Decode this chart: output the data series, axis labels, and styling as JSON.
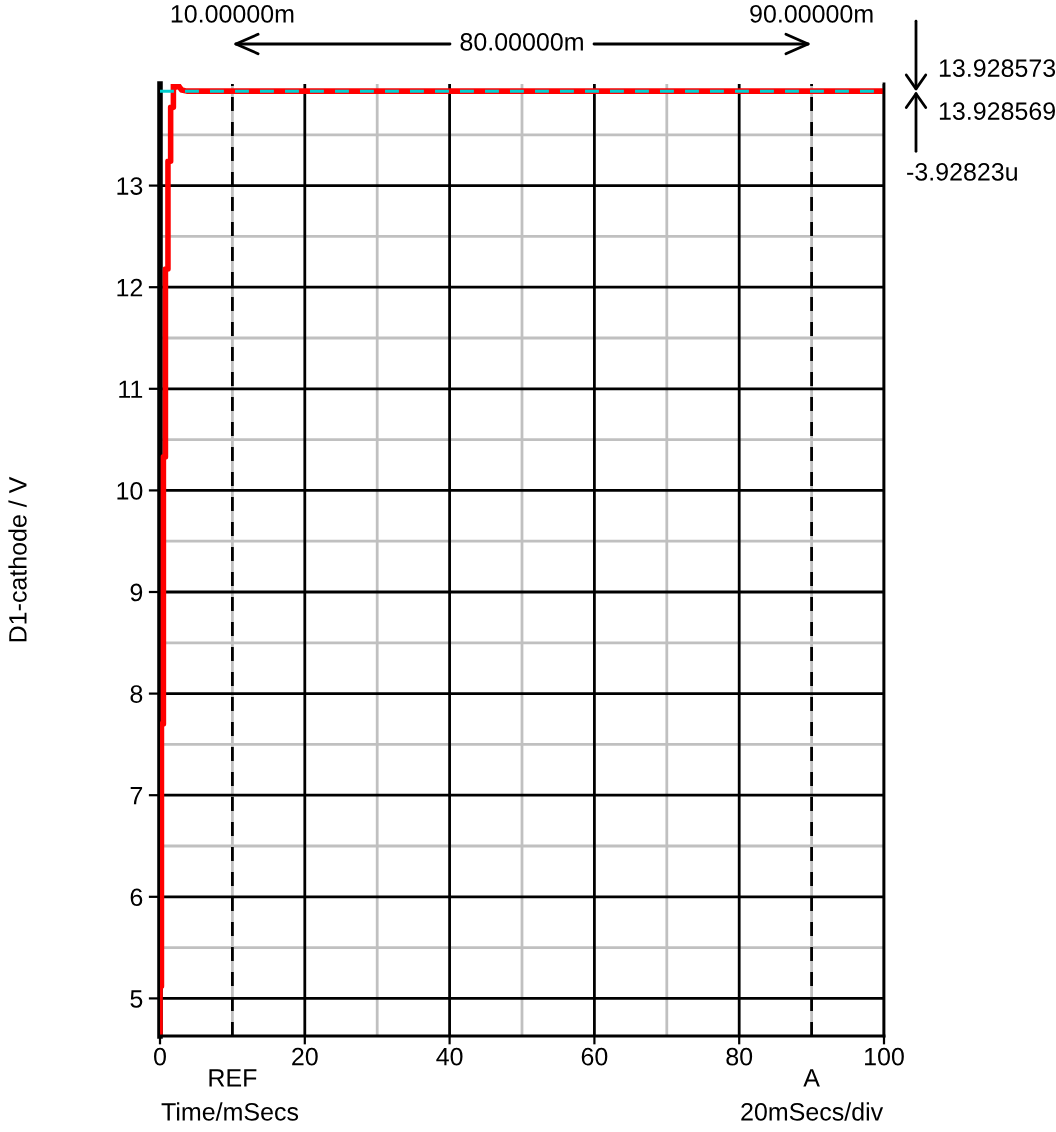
{
  "chart_data": {
    "type": "line",
    "xlabel": "Time/mSecs",
    "ylabel": "D1-cathode / V",
    "series": [
      {
        "color": "#ff0000",
        "x": [
          0,
          0,
          0.2,
          0.2,
          0.47,
          0.47,
          0.75,
          0.75,
          1.1,
          1.1,
          1.47,
          1.47,
          1.85,
          1.85,
          2.2,
          2.6,
          3.0,
          3.7,
          100
        ],
        "values": [
          4.63,
          5.12,
          5.12,
          7.7,
          7.7,
          10.33,
          10.33,
          12.18,
          12.18,
          13.24,
          13.24,
          13.77,
          13.77,
          14.0,
          13.97,
          13.98,
          13.94,
          13.93,
          13.93
        ]
      }
    ],
    "xlim": [
      0,
      100
    ],
    "xticks": [
      0,
      20,
      40,
      60,
      80,
      100
    ],
    "ylim": [
      4.63,
      14.0
    ],
    "yticks": [
      5,
      6,
      7,
      8,
      9,
      10,
      11,
      12,
      13
    ],
    "grid": true,
    "ref_lines": [
      {
        "axis": "x",
        "value": 10,
        "label": "REF",
        "color": "#000000",
        "line_style": "dashed"
      },
      {
        "axis": "x",
        "value": 90,
        "label": "A",
        "color": "#000000",
        "line_style": "dashed"
      },
      {
        "axis": "y",
        "value": 13.928573,
        "color": "#00d0d0",
        "line_style": "dashed"
      }
    ],
    "annotations": [
      "10.00000m",
      "80.00000m",
      "90.00000m",
      "13.928573",
      "13.928569",
      "-3.92823u",
      "20mSecs/div"
    ]
  }
}
